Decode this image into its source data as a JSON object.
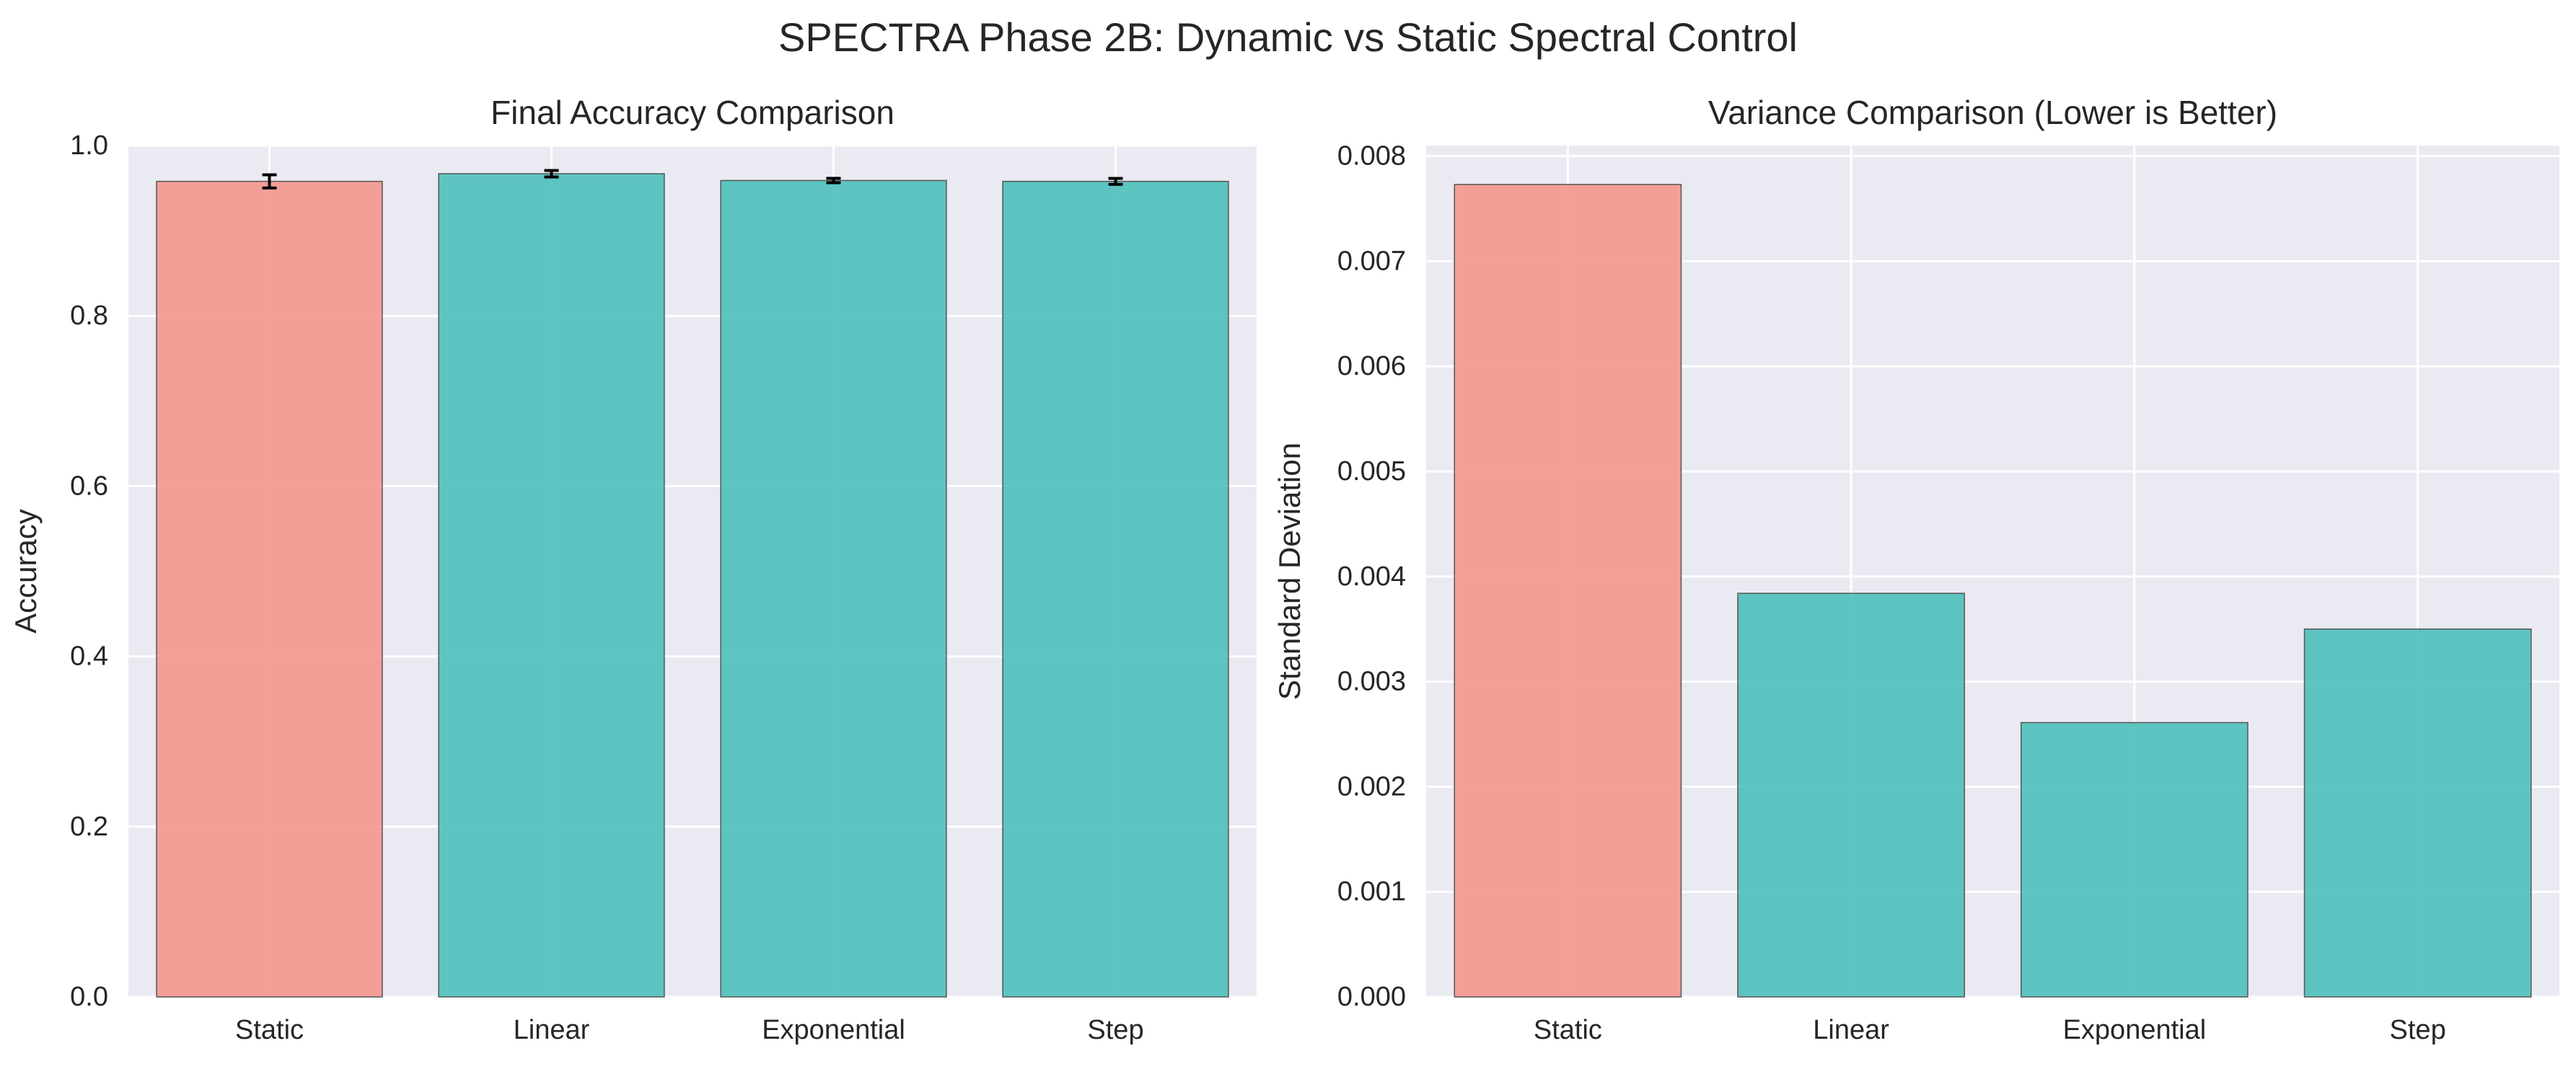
{
  "figure": {
    "suptitle": "SPECTRA Phase 2B: Dynamic vs Static Spectral Control"
  },
  "colors": {
    "static": "#f4978e",
    "dynamic": "#4ec0bb",
    "plot_bg": "#eaeaf2",
    "grid": "#ffffff",
    "edge": "#555555",
    "error_bar": "#000000"
  },
  "chart_data": [
    {
      "type": "bar",
      "title": "Final Accuracy Comparison",
      "xlabel": "",
      "ylabel": "Accuracy",
      "categories": [
        "Static",
        "Linear",
        "Exponential",
        "Step"
      ],
      "values": [
        0.958,
        0.967,
        0.959,
        0.958
      ],
      "error": [
        0.0077,
        0.0038,
        0.0026,
        0.0035
      ],
      "ylim": [
        0,
        1.0
      ],
      "yticks": [
        0.0,
        0.2,
        0.4,
        0.6,
        0.8,
        1.0
      ],
      "ytick_labels": [
        "0.0",
        "0.2",
        "0.4",
        "0.6",
        "0.8",
        "1.0"
      ],
      "grid": true,
      "color_groups": [
        "static",
        "dynamic",
        "dynamic",
        "dynamic"
      ]
    },
    {
      "type": "bar",
      "title": "Variance Comparison (Lower is Better)",
      "xlabel": "",
      "ylabel": "Standard Deviation",
      "categories": [
        "Static",
        "Linear",
        "Exponential",
        "Step"
      ],
      "values": [
        0.00773,
        0.00384,
        0.00261,
        0.0035
      ],
      "ylim": [
        0,
        0.0081
      ],
      "yticks": [
        0.0,
        0.001,
        0.002,
        0.003,
        0.004,
        0.005,
        0.006,
        0.007,
        0.008
      ],
      "ytick_labels": [
        "0.000",
        "0.001",
        "0.002",
        "0.003",
        "0.004",
        "0.005",
        "0.006",
        "0.007",
        "0.008"
      ],
      "grid": true,
      "color_groups": [
        "static",
        "dynamic",
        "dynamic",
        "dynamic"
      ]
    }
  ]
}
